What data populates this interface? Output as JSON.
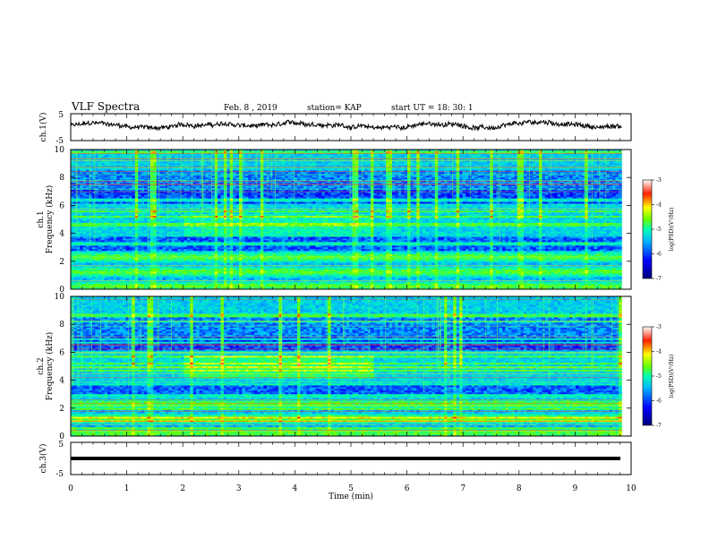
{
  "header": {
    "title": "VLF Spectra",
    "date": "Feb. 8 , 2019",
    "station": "station= KAP",
    "start": "start UT = 18: 30: 1"
  },
  "chart_data": [
    {
      "type": "line",
      "panel": "ch1-waveform",
      "ylabel": "ch.1(V)",
      "ylim": [
        -5,
        5
      ],
      "yticks": [
        "5",
        "-5"
      ],
      "xlim": [
        0,
        10
      ],
      "x_extent": [
        0,
        9.83
      ],
      "description_note": "",
      "series": [
        {
          "values_note": "",
          "baseline": 0.5,
          "amplitude": 1.6
        }
      ]
    },
    {
      "type": "heatmap",
      "panel": "ch1-spectrogram",
      "ylabel": "ch.1 Frequency (kHz)",
      "ylim": [
        0,
        10
      ],
      "yticks": [
        "0",
        "2",
        "4",
        "6",
        "8",
        "10"
      ],
      "xlim": [
        0,
        10
      ],
      "x_extent": [
        0,
        9.83
      ],
      "colorbar": {
        "label": "log(PSD)(V²/Hz)",
        "range": [
          -7,
          -3
        ],
        "ticks": [
          "-3",
          "-4",
          "-5",
          "-6",
          "-7"
        ]
      }
    },
    {
      "type": "heatmap",
      "panel": "ch2-spectrogram",
      "ylabel": "ch.2 Frequency (kHz)",
      "ylim": [
        0,
        10
      ],
      "yticks": [
        "0",
        "2",
        "4",
        "6",
        "8",
        "10"
      ],
      "xlim": [
        0,
        10
      ],
      "x_extent": [
        0,
        9.83
      ],
      "colorbar": {
        "label": "log(PSD)(V²/Hz)",
        "range": [
          -7,
          -3
        ],
        "ticks": [
          "-3",
          "-4",
          "-5",
          "-6",
          "-7"
        ]
      }
    },
    {
      "type": "line",
      "panel": "ch3-waveform",
      "ylabel": "ch.3(V)",
      "ylim": [
        -5,
        5
      ],
      "yticks": [
        "5",
        "-5"
      ],
      "xlim": [
        0,
        10
      ],
      "x_extent": [
        0,
        9.83
      ],
      "series": [
        {
          "constant": 0
        }
      ]
    }
  ],
  "xaxis": {
    "label": "Time (min)",
    "ticks": [
      "0",
      "1",
      "2",
      "3",
      "4",
      "5",
      "6",
      "7",
      "8",
      "9",
      "10"
    ]
  },
  "colors": {
    "axis": "#000000",
    "background": "#ffffff",
    "colormap": [
      "#00007a",
      "#0000ff",
      "#00b8ff",
      "#00ffb0",
      "#66ff00",
      "#ffff00",
      "#ff2000",
      "#ffffff"
    ]
  }
}
